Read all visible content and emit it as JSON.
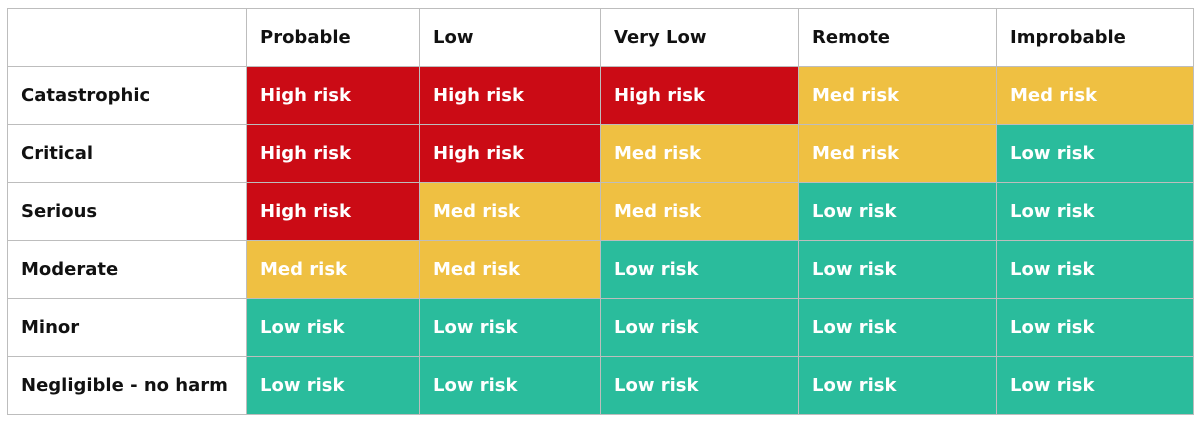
{
  "matrix": {
    "corner": "",
    "columns": [
      "Probable",
      "Low",
      "Very Low",
      "Remote",
      "Improbable"
    ],
    "rows": [
      {
        "label": "Catastrophic",
        "cells": [
          "High risk",
          "High risk",
          "High risk",
          "Med risk",
          "Med risk"
        ]
      },
      {
        "label": "Critical",
        "cells": [
          "High risk",
          "High risk",
          "Med risk",
          "Med risk",
          "Low risk"
        ]
      },
      {
        "label": "Serious",
        "cells": [
          "High risk",
          "Med risk",
          "Med risk",
          "Low risk",
          "Low risk"
        ]
      },
      {
        "label": "Moderate",
        "cells": [
          "Med risk",
          "Med risk",
          "Low risk",
          "Low risk",
          "Low risk"
        ]
      },
      {
        "label": "Minor",
        "cells": [
          "Low risk",
          "Low risk",
          "Low risk",
          "Low risk",
          "Low risk"
        ]
      },
      {
        "label": "Negligible - no harm",
        "cells": [
          "Low risk",
          "Low risk",
          "Low risk",
          "Low risk",
          "Low risk"
        ]
      }
    ]
  },
  "colors": {
    "High risk": "#cb0b15",
    "Med risk": "#efc042",
    "Low risk": "#2abc9c",
    "border": "#bdbdbd",
    "header_text": "#111111",
    "cell_text": "#ffffff"
  }
}
